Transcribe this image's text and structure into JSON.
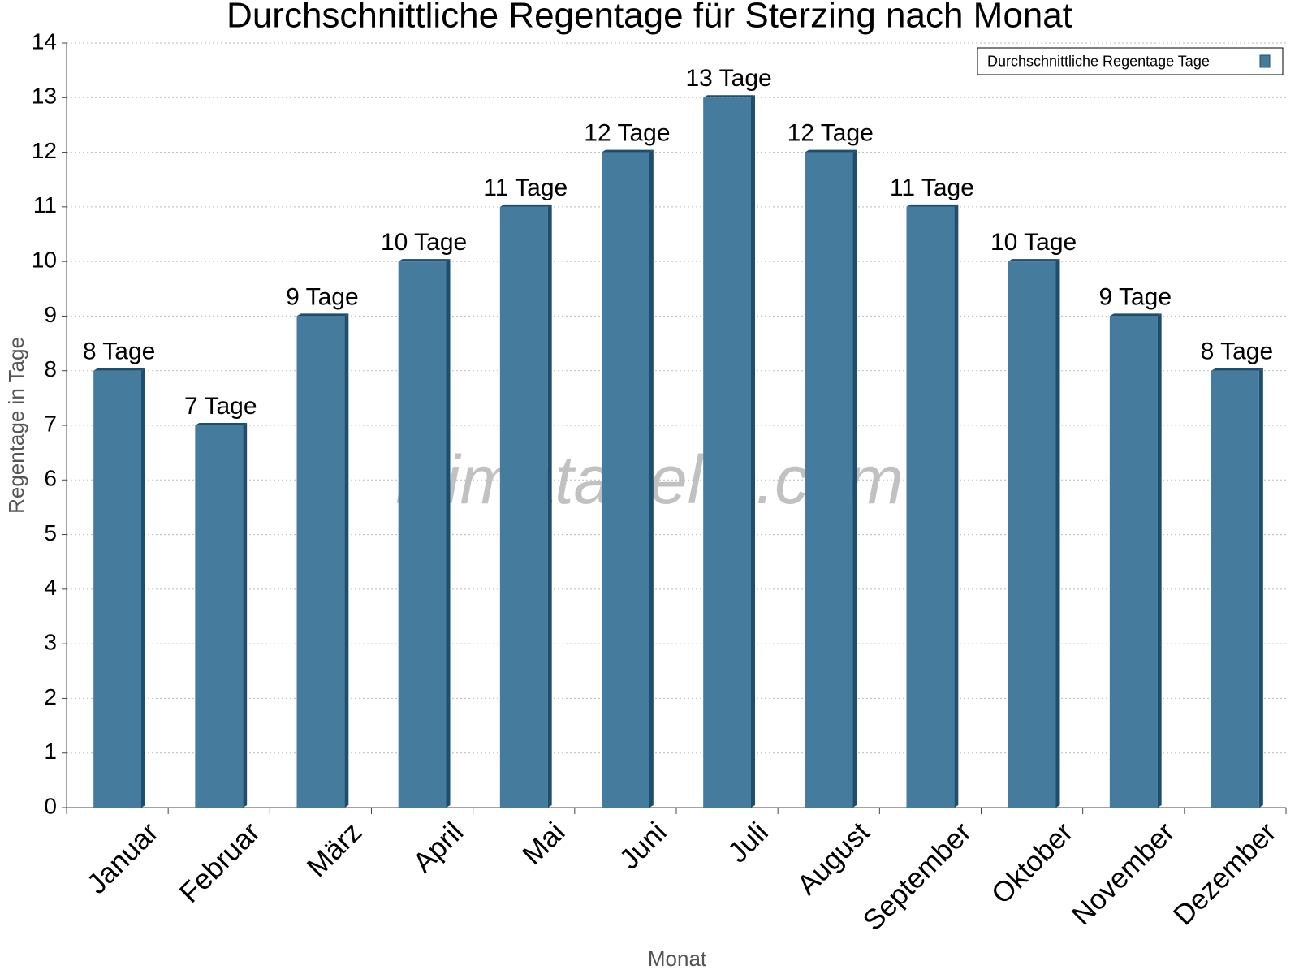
{
  "chart_data": {
    "type": "bar",
    "title": "Durchschnittliche Regentage für Sterzing nach Monat",
    "x_label": "Monat",
    "y_label": "Regentage in Tage",
    "watermark": "klimatabelle.com",
    "categories": [
      "Januar",
      "Februar",
      "März",
      "April",
      "Mai",
      "Juni",
      "Juli",
      "August",
      "September",
      "Oktober",
      "November",
      "Dezember"
    ],
    "series": [
      {
        "name": "Durchschnittliche Regentage Tage",
        "color": "#457b9d",
        "values": [
          8,
          7,
          9,
          10,
          11,
          12,
          13,
          12,
          11,
          10,
          9,
          8
        ],
        "value_labels": [
          "8 Tage",
          "7 Tage",
          "9 Tage",
          "10 Tage",
          "11 Tage",
          "12 Tage",
          "13 Tage",
          "12 Tage",
          "11 Tage",
          "10 Tage",
          "9 Tage",
          "8 Tage"
        ]
      }
    ],
    "ylim": [
      0,
      14
    ],
    "yticks": [
      0,
      1,
      2,
      3,
      4,
      5,
      6,
      7,
      8,
      9,
      10,
      11,
      12,
      13,
      14
    ],
    "grid": true,
    "legend": "top-right"
  }
}
